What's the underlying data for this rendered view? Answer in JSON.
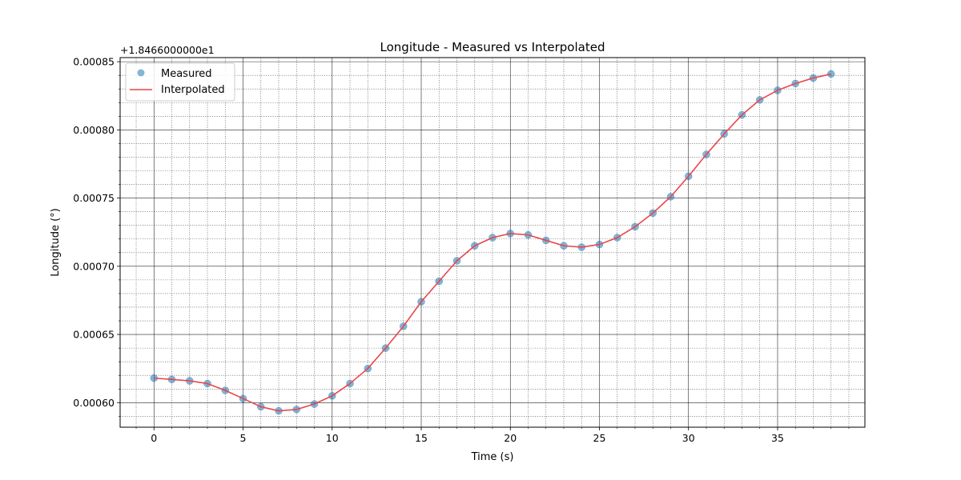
{
  "chart_data": {
    "type": "line",
    "title": "Longitude - Measured vs Interpolated",
    "xlabel": "Time (s)",
    "ylabel": "Longitude (°)",
    "offset_text": "+1.8466000000e1",
    "xlim": [
      -1.9,
      39.9
    ],
    "ylim": [
      0.000582,
      0.000853
    ],
    "x_ticks": [
      0,
      5,
      10,
      15,
      20,
      25,
      30,
      35
    ],
    "x_tick_labels": [
      "0",
      "5",
      "10",
      "15",
      "20",
      "25",
      "30",
      "35"
    ],
    "y_ticks": [
      0.0006,
      0.00065,
      0.0007,
      0.00075,
      0.0008,
      0.00085
    ],
    "y_tick_labels": [
      "0.00060",
      "0.00065",
      "0.00070",
      "0.00075",
      "0.00080",
      "0.00085"
    ],
    "x_minor_step": 1,
    "y_minor_step": 1e-05,
    "grid": true,
    "legend_position": "upper-left",
    "series": [
      {
        "name": "Measured",
        "kind": "scatter",
        "color": "#1f77b4",
        "x": [
          0,
          1,
          2,
          3,
          4,
          5,
          6,
          7,
          8,
          9,
          10,
          11,
          12,
          13,
          14,
          15,
          16,
          17,
          18,
          19,
          20,
          21,
          22,
          23,
          24,
          25,
          26,
          27,
          28,
          29,
          30,
          31,
          32,
          33,
          34,
          35,
          36,
          37,
          38
        ],
        "y": [
          0.000618,
          0.000617,
          0.000616,
          0.000614,
          0.000609,
          0.000603,
          0.000597,
          0.000594,
          0.000595,
          0.000599,
          0.000605,
          0.000614,
          0.000625,
          0.00064,
          0.000656,
          0.000674,
          0.000689,
          0.000704,
          0.000715,
          0.000721,
          0.000724,
          0.000723,
          0.000719,
          0.000715,
          0.000714,
          0.000716,
          0.000721,
          0.000729,
          0.000739,
          0.000751,
          0.000766,
          0.000782,
          0.000797,
          0.000811,
          0.000822,
          0.000829,
          0.000834,
          0.000838,
          0.000841
        ]
      },
      {
        "name": "Interpolated",
        "kind": "line",
        "color": "#e8474a",
        "x": [
          0,
          1,
          2,
          3,
          4,
          5,
          6,
          7,
          8,
          9,
          10,
          11,
          12,
          13,
          14,
          15,
          16,
          17,
          18,
          19,
          20,
          21,
          22,
          23,
          24,
          25,
          26,
          27,
          28,
          29,
          30,
          31,
          32,
          33,
          34,
          35,
          36,
          37,
          38
        ],
        "y": [
          0.000618,
          0.000617,
          0.000616,
          0.000614,
          0.000609,
          0.000603,
          0.000597,
          0.000594,
          0.000595,
          0.000599,
          0.000605,
          0.000614,
          0.000625,
          0.00064,
          0.000656,
          0.000674,
          0.000689,
          0.000704,
          0.000715,
          0.000721,
          0.000724,
          0.000723,
          0.000719,
          0.000715,
          0.000714,
          0.000716,
          0.000721,
          0.000729,
          0.000739,
          0.000751,
          0.000766,
          0.000782,
          0.000797,
          0.000811,
          0.000822,
          0.000829,
          0.000834,
          0.000838,
          0.000841
        ]
      }
    ]
  }
}
